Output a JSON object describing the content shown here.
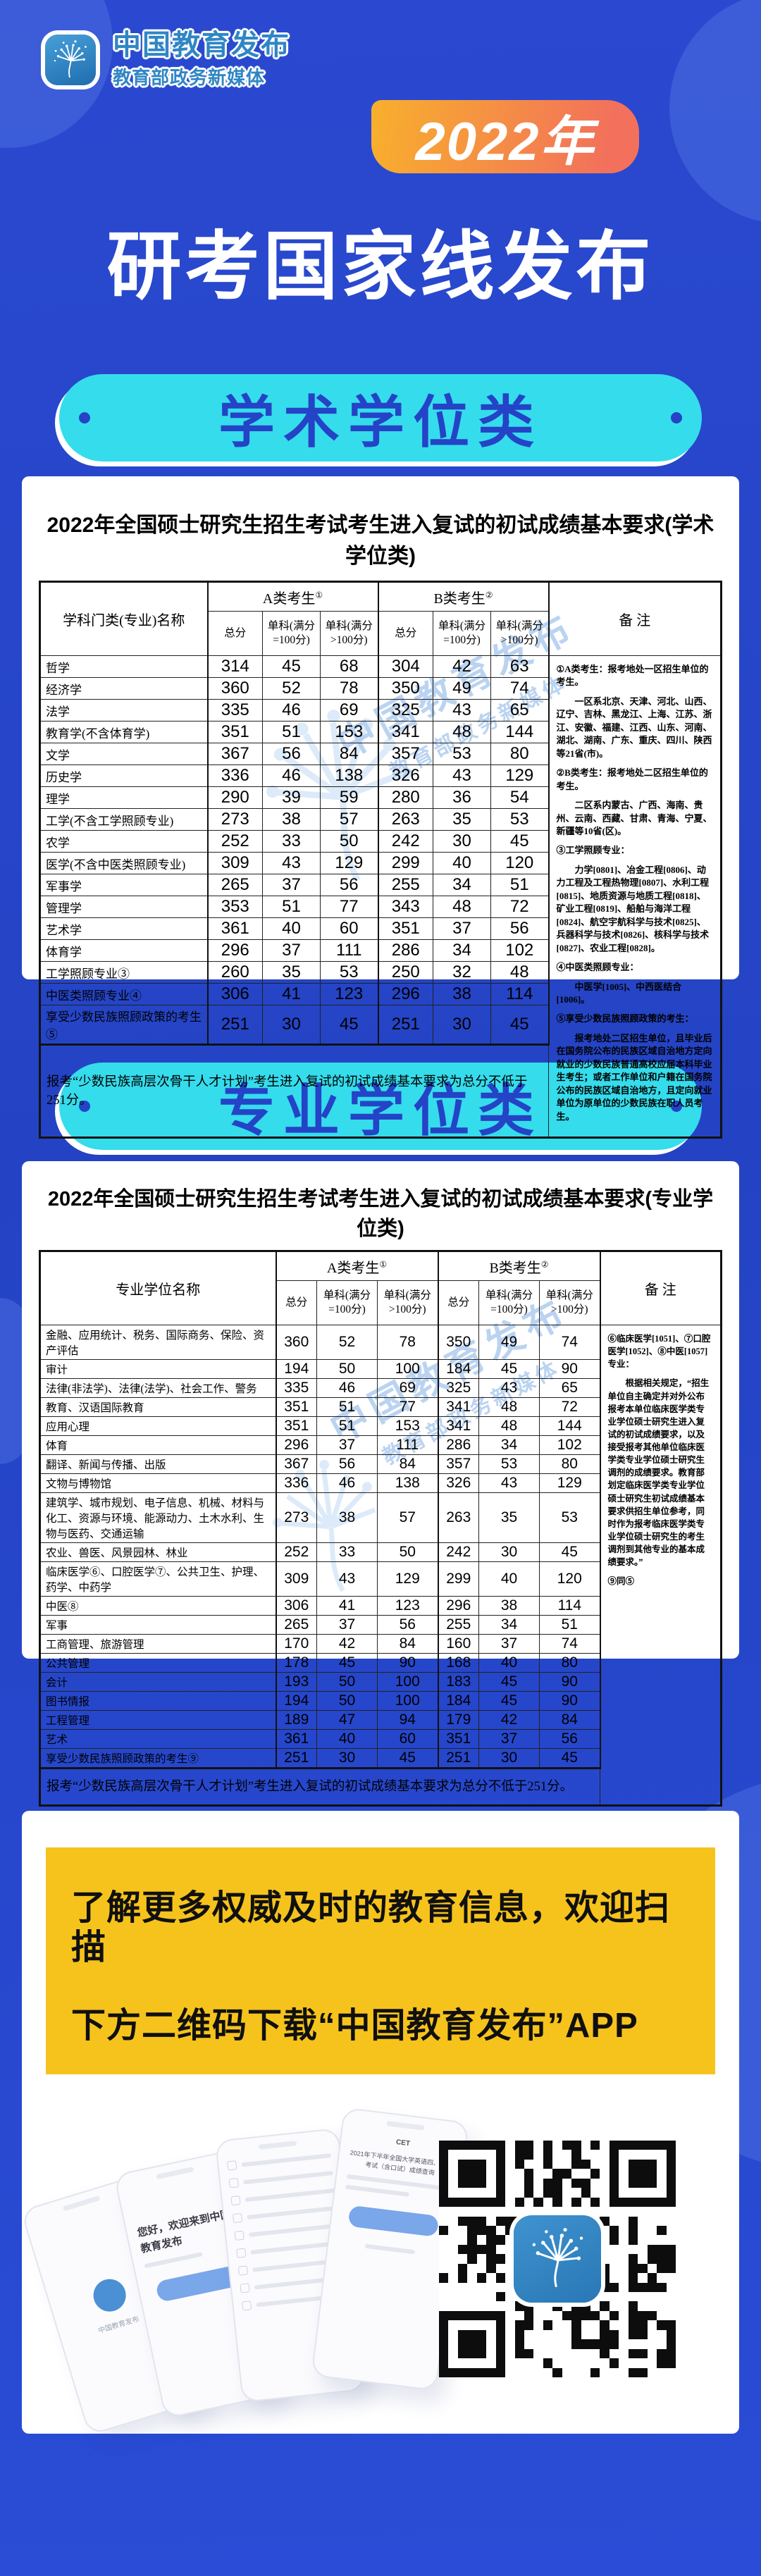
{
  "colors": {
    "background_blue": "#2443c4",
    "accent_cyan": "#35dcec",
    "banner_gradient_start": "#f8b02c",
    "banner_gradient_end": "#f2705c",
    "promo_yellow": "#f6c31d",
    "logo_blue": "#2f86c4",
    "qr_logo_blue": "#2a77b6"
  },
  "header": {
    "logo_title": "中国教育发布",
    "logo_subtitle": "教育部政务新媒体"
  },
  "year_badge": "2022年",
  "main_title": "研考国家线发布",
  "watermark": {
    "line1": "中国教育发布",
    "line2": "教育部政务新媒体"
  },
  "sections": {
    "academic_pill": "学术学位类",
    "professional_pill": "专业学位类"
  },
  "tables": [
    {
      "title": "2022年全国硕士研究生招生考试考生进入复试的初试成绩基本要求(学术学位类)",
      "name_header": "学科门类(专业)名称",
      "group_a": "A类考生",
      "group_a_sup": "①",
      "group_b": "B类考生",
      "group_b_sup": "②",
      "sub_headers": [
        "总分",
        "单科(满分=100分)",
        "单科(满分>100分)"
      ],
      "remark_header": "备    注",
      "rows": [
        {
          "name": "哲学",
          "a": [
            314,
            45,
            68
          ],
          "b": [
            304,
            42,
            63
          ]
        },
        {
          "name": "经济学",
          "a": [
            360,
            52,
            78
          ],
          "b": [
            350,
            49,
            74
          ]
        },
        {
          "name": "法学",
          "a": [
            335,
            46,
            69
          ],
          "b": [
            325,
            43,
            65
          ]
        },
        {
          "name": "教育学(不含体育学)",
          "a": [
            351,
            51,
            153
          ],
          "b": [
            341,
            48,
            144
          ]
        },
        {
          "name": "文学",
          "a": [
            367,
            56,
            84
          ],
          "b": [
            357,
            53,
            80
          ]
        },
        {
          "name": "历史学",
          "a": [
            336,
            46,
            138
          ],
          "b": [
            326,
            43,
            129
          ]
        },
        {
          "name": "理学",
          "a": [
            290,
            39,
            59
          ],
          "b": [
            280,
            36,
            54
          ]
        },
        {
          "name": "工学(不含工学照顾专业)",
          "a": [
            273,
            38,
            57
          ],
          "b": [
            263,
            35,
            53
          ]
        },
        {
          "name": "农学",
          "a": [
            252,
            33,
            50
          ],
          "b": [
            242,
            30,
            45
          ]
        },
        {
          "name": "医学(不含中医类照顾专业)",
          "a": [
            309,
            43,
            129
          ],
          "b": [
            299,
            40,
            120
          ]
        },
        {
          "name": "军事学",
          "a": [
            265,
            37,
            56
          ],
          "b": [
            255,
            34,
            51
          ]
        },
        {
          "name": "管理学",
          "a": [
            353,
            51,
            77
          ],
          "b": [
            343,
            48,
            72
          ]
        },
        {
          "name": "艺术学",
          "a": [
            361,
            40,
            60
          ],
          "b": [
            351,
            37,
            56
          ]
        },
        {
          "name": "体育学",
          "a": [
            296,
            37,
            111
          ],
          "b": [
            286,
            34,
            102
          ]
        },
        {
          "name": "工学照顾专业③",
          "a": [
            260,
            35,
            53
          ],
          "b": [
            250,
            32,
            48
          ]
        },
        {
          "name": "中医类照顾专业④",
          "a": [
            306,
            41,
            123
          ],
          "b": [
            296,
            38,
            114
          ]
        },
        {
          "name": "享受少数民族照顾政策的考生⑤",
          "a": [
            251,
            30,
            45
          ],
          "b": [
            251,
            30,
            45
          ]
        }
      ],
      "footnote": "报考“少数民族高层次骨干人才计划”考生进入复试的初试成绩基本要求为总分不低于251分。",
      "remark_paragraphs": [
        "①A类考生：报考地处一区招生单位的考生。",
        "　　一区系北京、天津、河北、山西、辽宁、吉林、黑龙江、上海、江苏、浙江、安徽、福建、江西、山东、河南、湖北、湖南、广东、重庆、四川、陕西等21省(市)。",
        "②B类考生：报考地处二区招生单位的考生。",
        "　　二区系内蒙古、广西、海南、贵州、云南、西藏、甘肃、青海、宁夏、新疆等10省(区)。",
        "③工学照顾专业：",
        "　　力学[0801]、冶金工程[0806]、动力工程及工程热物理[0807]、水利工程[0815]、地质资源与地质工程[0818]、矿业工程[0819]、船舶与海洋工程[0824]、航空宇航科学与技术[0825]、兵器科学与技术[0826]、核科学与技术[0827]、农业工程[0828]。",
        "④中医类照顾专业：",
        "　　中医学[1005]、中西医结合[1006]。",
        "⑤享受少数民族照顾政策的考生：",
        "　　报考地处二区招生单位，且毕业后在国务院公布的民族区域自治地方定向就业的少数民族普通高校应届本科毕业生考生；或者工作单位和户籍在国务院公布的民族区域自治地方，且定向就业单位为原单位的少数民族在职人员考生。"
      ]
    },
    {
      "title": "2022年全国硕士研究生招生考试考生进入复试的初试成绩基本要求(专业学位类)",
      "name_header": "专业学位名称",
      "group_a": "A类考生",
      "group_a_sup": "①",
      "group_b": "B类考生",
      "group_b_sup": "②",
      "sub_headers": [
        "总分",
        "单科(满分=100分)",
        "单科(满分>100分)"
      ],
      "remark_header": "备    注",
      "rows": [
        {
          "name": "金融、应用统计、税务、国际商务、保险、资产评估",
          "a": [
            360,
            52,
            78
          ],
          "b": [
            350,
            49,
            74
          ]
        },
        {
          "name": "审计",
          "a": [
            194,
            50,
            100
          ],
          "b": [
            184,
            45,
            90
          ]
        },
        {
          "name": "法律(非法学)、法律(法学)、社会工作、警务",
          "a": [
            335,
            46,
            69
          ],
          "b": [
            325,
            43,
            65
          ]
        },
        {
          "name": "教育、汉语国际教育",
          "a": [
            351,
            51,
            77
          ],
          "b": [
            341,
            48,
            72
          ]
        },
        {
          "name": "应用心理",
          "a": [
            351,
            51,
            153
          ],
          "b": [
            341,
            48,
            144
          ]
        },
        {
          "name": "体育",
          "a": [
            296,
            37,
            111
          ],
          "b": [
            286,
            34,
            102
          ]
        },
        {
          "name": "翻译、新闻与传播、出版",
          "a": [
            367,
            56,
            84
          ],
          "b": [
            357,
            53,
            80
          ]
        },
        {
          "name": "文物与博物馆",
          "a": [
            336,
            46,
            138
          ],
          "b": [
            326,
            43,
            129
          ]
        },
        {
          "name": "建筑学、城市规划、电子信息、机械、材料与化工、资源与环境、能源动力、土木水利、生物与医药、交通运输",
          "a": [
            273,
            38,
            57
          ],
          "b": [
            263,
            35,
            53
          ]
        },
        {
          "name": "农业、兽医、风景园林、林业",
          "a": [
            252,
            33,
            50
          ],
          "b": [
            242,
            30,
            45
          ]
        },
        {
          "name": "临床医学⑥、口腔医学⑦、公共卫生、护理、药学、中药学",
          "a": [
            309,
            43,
            129
          ],
          "b": [
            299,
            40,
            120
          ]
        },
        {
          "name": "中医⑧",
          "a": [
            306,
            41,
            123
          ],
          "b": [
            296,
            38,
            114
          ]
        },
        {
          "name": "军事",
          "a": [
            265,
            37,
            56
          ],
          "b": [
            255,
            34,
            51
          ]
        },
        {
          "name": "工商管理、旅游管理",
          "a": [
            170,
            42,
            84
          ],
          "b": [
            160,
            37,
            74
          ]
        },
        {
          "name": "公共管理",
          "a": [
            178,
            45,
            90
          ],
          "b": [
            168,
            40,
            80
          ]
        },
        {
          "name": "会计",
          "a": [
            193,
            50,
            100
          ],
          "b": [
            183,
            45,
            90
          ]
        },
        {
          "name": "图书情报",
          "a": [
            194,
            50,
            100
          ],
          "b": [
            184,
            45,
            90
          ]
        },
        {
          "name": "工程管理",
          "a": [
            189,
            47,
            94
          ],
          "b": [
            179,
            42,
            84
          ]
        },
        {
          "name": "艺术",
          "a": [
            361,
            40,
            60
          ],
          "b": [
            351,
            37,
            56
          ]
        },
        {
          "name": "享受少数民族照顾政策的考生⑨",
          "a": [
            251,
            30,
            45
          ],
          "b": [
            251,
            30,
            45
          ]
        }
      ],
      "footnote": "报考“少数民族高层次骨干人才计划”考生进入复试的初试成绩基本要求为总分不低于251分。",
      "remark_paragraphs": [
        "⑥临床医学[1051]、⑦口腔医学[1052]、⑧中医[1057]专业：",
        "　　根据相关规定，“招生单位自主确定并对外公布报考本单位临床医学类专业学位硕士研究生进入复试的初试成绩要求，以及接受报考其他单位临床医学类专业学位硕士研究生调剂的成绩要求。教育部划定临床医学类专业学位硕士研究生初试成绩基本要求供招生单位参考，同时作为报考临床医学类专业学位硕士研究生的考生调剂到其他专业的基本成绩要求。”",
        "⑨同⑤"
      ]
    }
  ],
  "promo": {
    "line1": "了解更多权威及时的教育信息，欢迎扫描",
    "line2": "下方二维码下载“中国教育发布”APP"
  },
  "phones": {
    "greeting": "您好，欢迎来到中国教育发布",
    "app_name": "中国教育发布",
    "cet_label": "CET",
    "cet_title": "2021年下半年全国大学英语四、六级考试（含口试）成绩查询"
  }
}
